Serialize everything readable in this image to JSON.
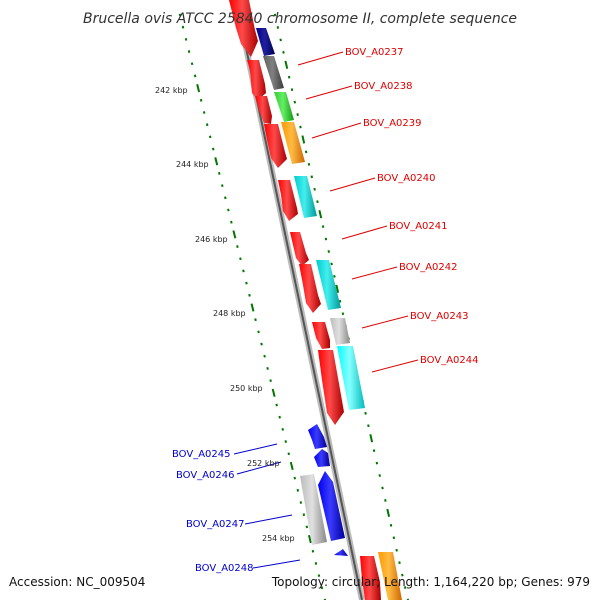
{
  "title": "Brucella ovis ATCC 25840 chromosome II, complete sequence",
  "footer": {
    "accession": "Accession: NC_009504",
    "summary": "Topology: circular; Length: 1,164,220 bp; Genes: 979"
  },
  "ruler": {
    "ticks": [
      {
        "label": "242 kbp"
      },
      {
        "label": "244 kbp"
      },
      {
        "label": "246 kbp"
      },
      {
        "label": "248 kbp"
      },
      {
        "label": "250 kbp"
      },
      {
        "label": "252 kbp"
      },
      {
        "label": "254 kbp"
      }
    ]
  },
  "genes_right": [
    {
      "label": "BOV_A0237",
      "color": "#dd0000"
    },
    {
      "label": "BOV_A0238",
      "color": "#dd0000"
    },
    {
      "label": "BOV_A0239",
      "color": "#dd0000"
    },
    {
      "label": "BOV_A0240",
      "color": "#dd0000"
    },
    {
      "label": "BOV_A0241",
      "color": "#dd0000"
    },
    {
      "label": "BOV_A0242",
      "color": "#dd0000"
    },
    {
      "label": "BOV_A0243",
      "color": "#dd0000"
    },
    {
      "label": "BOV_A0244",
      "color": "#dd0000"
    }
  ],
  "genes_left": [
    {
      "label": "BOV_A0245",
      "color": "#0000cc"
    },
    {
      "label": "BOV_A0246",
      "color": "#0000cc"
    },
    {
      "label": "BOV_A0247",
      "color": "#0000cc"
    },
    {
      "label": "BOV_A0248",
      "color": "#0000cc"
    }
  ],
  "colors": {
    "forward_strand": "#ff0000",
    "reverse_strand": "#0000ee",
    "backbone": "#999999",
    "tick_marks": "#007700",
    "cog_navy": "#000080",
    "cog_gray": "#606060",
    "cog_green": "#33cc33",
    "cog_orange": "#ff9900",
    "cog_teal": "#00cccc",
    "cog_silver": "#bbbbbb",
    "cog_cyan": "#00ffff"
  }
}
